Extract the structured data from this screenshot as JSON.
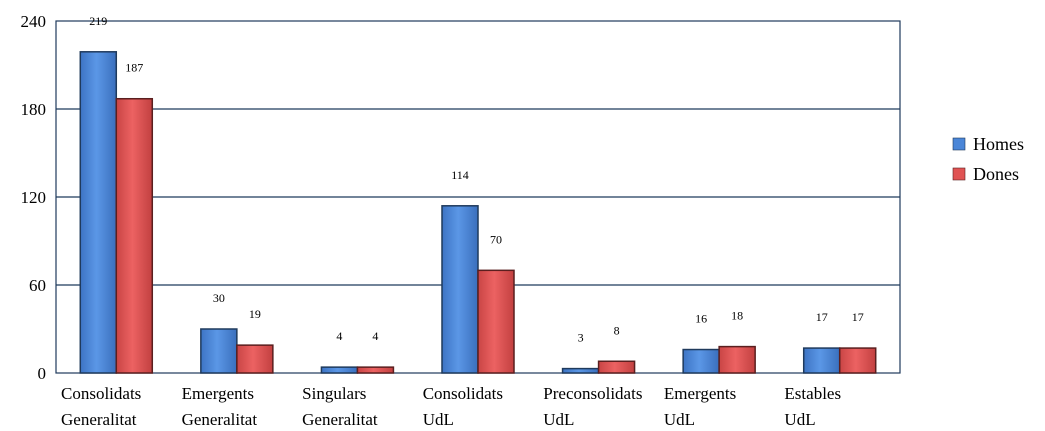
{
  "chart_data": {
    "type": "bar",
    "categories": [
      [
        "Consolidats",
        "Generalitat"
      ],
      [
        "Emergents",
        "Generalitat"
      ],
      [
        "Singulars",
        "Generalitat"
      ],
      [
        "Consolidats",
        "UdL"
      ],
      [
        "Preconsolidats",
        "UdL"
      ],
      [
        "Emergents",
        "UdL"
      ],
      [
        "Estables",
        "UdL"
      ]
    ],
    "series": [
      {
        "name": "Homes",
        "values": [
          219,
          30,
          4,
          114,
          3,
          16,
          17
        ],
        "color": "#4a86d8"
      },
      {
        "name": "Dones",
        "values": [
          187,
          19,
          4,
          70,
          8,
          18,
          17
        ],
        "color": "#e05353"
      }
    ],
    "ylim": [
      0,
      240
    ],
    "yticks": [
      "0",
      "60",
      "120",
      "180",
      "240"
    ],
    "grid": true,
    "legend_position": "right",
    "title": "",
    "xlabel": "",
    "ylabel": ""
  }
}
